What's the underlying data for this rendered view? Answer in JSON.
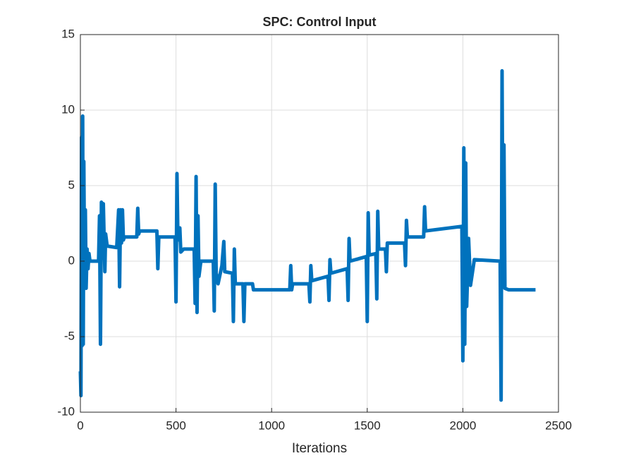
{
  "chart_data": {
    "type": "line",
    "title": "SPC: Control Input",
    "x_label": "Iterations",
    "xlim": [
      0,
      2500
    ],
    "xticks": [
      0,
      500,
      1000,
      1500,
      2000,
      2500
    ],
    "ylim": [
      -10,
      15
    ],
    "yticks": [
      -10,
      -5,
      0,
      5,
      10,
      15
    ],
    "grid": true,
    "x": [
      0,
      3,
      6,
      9,
      12,
      15,
      18,
      22,
      26,
      30,
      35,
      40,
      45,
      50,
      95,
      100,
      105,
      110,
      115,
      120,
      128,
      132,
      140,
      190,
      200,
      205,
      210,
      215,
      220,
      225,
      230,
      295,
      300,
      305,
      310,
      400,
      405,
      410,
      495,
      500,
      505,
      510,
      520,
      525,
      540,
      595,
      600,
      605,
      610,
      615,
      620,
      630,
      695,
      700,
      705,
      710,
      720,
      740,
      750,
      755,
      795,
      800,
      805,
      810,
      850,
      855,
      860,
      900,
      905,
      1095,
      1100,
      1105,
      1110,
      1195,
      1200,
      1205,
      1210,
      1295,
      1300,
      1305,
      1310,
      1395,
      1400,
      1405,
      1410,
      1495,
      1500,
      1505,
      1510,
      1545,
      1550,
      1555,
      1560,
      1595,
      1600,
      1605,
      1695,
      1700,
      1705,
      1710,
      1795,
      1800,
      1805,
      1995,
      2000,
      2005,
      2010,
      2015,
      2020,
      2030,
      2040,
      2060,
      2195,
      2200,
      2205,
      2210,
      2215,
      2220,
      2240,
      2380
    ],
    "series": [
      {
        "color": "#0072bd",
        "values": [
          -7.3,
          -8.9,
          8.2,
          -5.6,
          9.6,
          -5.5,
          6.6,
          -1.6,
          3.4,
          -1.8,
          0.8,
          -0.5,
          0.5,
          0,
          0,
          3,
          -5.5,
          3.9,
          0.2,
          3.8,
          -0.7,
          1.8,
          1,
          0.9,
          3.4,
          -1.7,
          3.4,
          1.2,
          3.4,
          1.4,
          1.6,
          1.6,
          3.5,
          1.8,
          2,
          2,
          -0.5,
          1.6,
          1.6,
          -2.7,
          5.8,
          1.4,
          2.2,
          0.6,
          0.8,
          0.8,
          -2.8,
          5.6,
          -3.4,
          3,
          -1,
          0,
          0,
          -3.3,
          5.1,
          -0.8,
          -1.5,
          -0.3,
          1.3,
          -0.7,
          -0.8,
          -4,
          0.8,
          -1.5,
          -1.5,
          -4,
          -1.5,
          -1.5,
          -1.9,
          -1.9,
          -0.3,
          -1.9,
          -1.5,
          -1.5,
          -2.7,
          -0.3,
          -1.3,
          -1,
          -2.6,
          0.1,
          -0.8,
          -0.5,
          -2.6,
          1.5,
          0,
          0.3,
          -4,
          3.2,
          0.4,
          0.5,
          -2.5,
          3.3,
          0.8,
          0.8,
          -0.7,
          1.2,
          1.2,
          -0.3,
          2.7,
          1.6,
          1.6,
          3.6,
          2,
          2.3,
          -6.6,
          7.5,
          -5.5,
          6.5,
          -3,
          1.5,
          -1.6,
          0.1,
          0,
          -9.2,
          12.6,
          -1.5,
          7.7,
          -1.8,
          -1.9,
          -1.9
        ]
      }
    ]
  }
}
